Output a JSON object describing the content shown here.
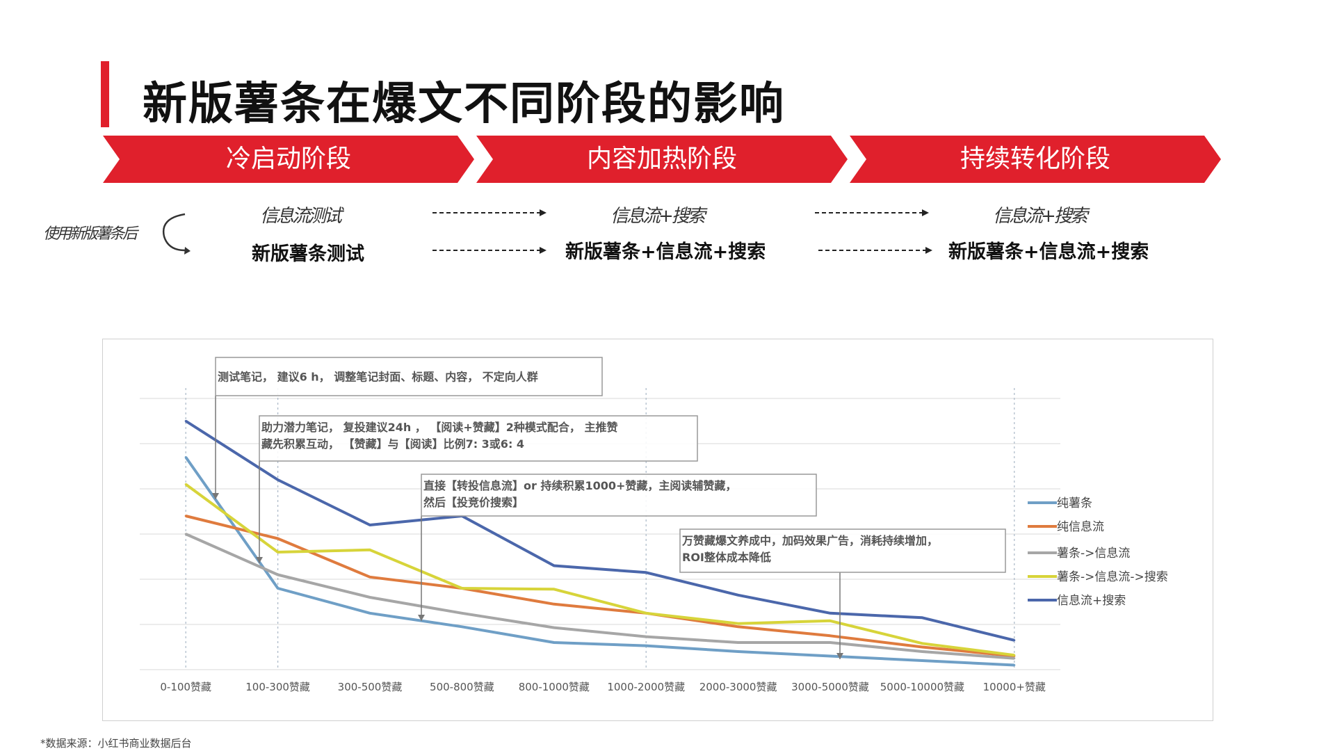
{
  "title": "新版薯条在爆文不同阶段的影响",
  "stages": [
    "冷启动阶段",
    "内容加热阶段",
    "持续转化阶段"
  ],
  "side_label": "使用新版薯条后",
  "flow": {
    "before": [
      "信息流测试",
      "信息流+搜索",
      "信息流+搜索"
    ],
    "after": [
      "新版薯条测试",
      "新版薯条+信息流+搜索",
      "新版薯条+信息流+搜索"
    ]
  },
  "annotations": [
    {
      "lines": [
        "测试笔记，  建议6 h，  调整笔记封面、标题、内容，  不定向人群"
      ]
    },
    {
      "lines": [
        "助力潜力笔记，  复投建议24h ，  【阅读+赞藏】2种模式配合，  主推赞",
        "藏先积累互动，    【赞藏】与【阅读】比例7: 3或6: 4"
      ]
    },
    {
      "lines": [
        "直接【转投信息流】or 持续积累1000+赞藏，主阅读辅赞藏，",
        "然后【投竞价搜索】"
      ]
    },
    {
      "lines": [
        "万赞藏爆文养成中，加码效果广告，消耗持续增加，",
        "ROI整体成本降低"
      ]
    }
  ],
  "source": "*数据来源：小红书商业数据后台",
  "colors": {
    "accent": "#e0202c",
    "series": [
      "#6f9fc6",
      "#df7b3e",
      "#a6a6a6",
      "#d7d43a",
      "#4b67ab"
    ]
  },
  "chart_data": {
    "type": "line",
    "categories": [
      "0-100赞藏",
      "100-300赞藏",
      "300-500赞藏",
      "500-800赞藏",
      "800-1000赞藏",
      "1000-2000赞藏",
      "2000-3000赞藏",
      "3000-5000赞藏",
      "5000-10000赞藏",
      "10000+赞藏"
    ],
    "series": [
      {
        "name": "纯薯条",
        "values": [
          4.7,
          1.8,
          1.25,
          0.95,
          0.6,
          0.53,
          0.4,
          0.3,
          0.2,
          0.1
        ]
      },
      {
        "name": "纯信息流",
        "values": [
          3.4,
          2.9,
          2.05,
          1.8,
          1.45,
          1.25,
          0.95,
          0.75,
          0.5,
          0.3
        ]
      },
      {
        "name": "薯条->信息流",
        "values": [
          3.0,
          2.1,
          1.6,
          1.25,
          0.93,
          0.73,
          0.6,
          0.6,
          0.4,
          0.25
        ]
      },
      {
        "name": "薯条->信息流->搜索",
        "values": [
          4.1,
          2.6,
          2.65,
          1.8,
          1.78,
          1.25,
          1.02,
          1.08,
          0.58,
          0.32
        ]
      },
      {
        "name": "信息流+搜索",
        "values": [
          5.5,
          4.2,
          3.2,
          3.4,
          2.3,
          2.15,
          1.65,
          1.25,
          1.15,
          0.65
        ]
      }
    ],
    "ylim": [
      0,
      6
    ],
    "grid": true,
    "legend": "right"
  }
}
